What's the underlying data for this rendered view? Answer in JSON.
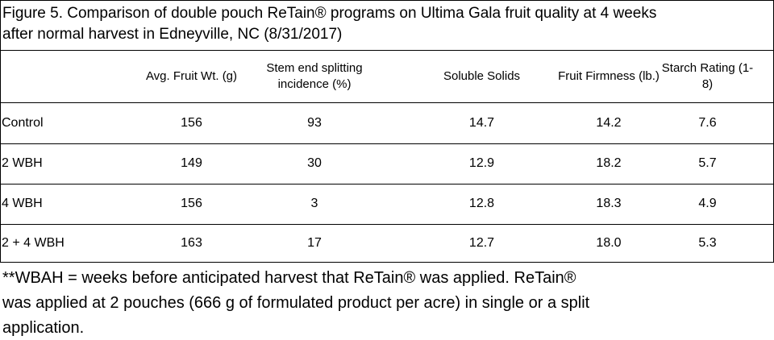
{
  "title": {
    "lines": [
      "Figure 5. Comparison of double pouch ReTain® programs on Ultima Gala fruit quality at 4 weeks",
      "after normal harvest in Edneyville, NC (8/31/2017)"
    ]
  },
  "table": {
    "header": [
      "",
      "Avg. Fruit Wt. (g)",
      "Stem end splitting incidence (%)",
      "Soluble Solids",
      "Fruit Firmness (lb.)",
      "Starch Rating (1-8)"
    ],
    "rows": [
      [
        "Control",
        "156",
        "93",
        "14.7",
        "14.2",
        "7.6"
      ],
      [
        "2 WBH",
        "149",
        "30",
        "12.9",
        "18.2",
        "5.7"
      ],
      [
        "4 WBH",
        "156",
        "3",
        "12.8",
        "18.3",
        "4.9"
      ],
      [
        "2 + 4 WBH",
        "163",
        "17",
        "12.7",
        "18.0",
        "5.3"
      ]
    ]
  },
  "footnote": {
    "lines": [
      "**WBAH = weeks before anticipated harvest that ReTain® was applied. ReTain®",
      "was applied at 2 pouches (666 g of formulated product per acre) in single or a split",
      "application."
    ]
  }
}
